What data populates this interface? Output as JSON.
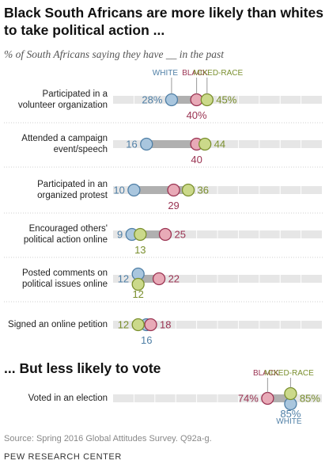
{
  "title": "Black South Africans are more likely than whites to take political action ...",
  "subtitle": "% of South Africans saying they have __ in the past",
  "section2_title": "... But less likely to vote",
  "source": "Source: Spring 2016 Global Attitudes Survey. Q92a-g.",
  "org": "PEW RESEARCH CENTER",
  "colors": {
    "white": "#4f7fa6",
    "white_fill": "#a9c6de",
    "black": "#9a3352",
    "black_fill": "#e8aab7",
    "mixed": "#7a8f2e",
    "mixed_fill": "#cbd98a",
    "track": "#e6e6e6",
    "range": "#b0b0b0"
  },
  "chart_data": {
    "type": "dot",
    "series": [
      {
        "name": "WHITE",
        "key": "white"
      },
      {
        "name": "BLACK",
        "key": "black"
      },
      {
        "name": "MIXED-RACE",
        "key": "mixed"
      }
    ],
    "xlim": [
      0,
      100
    ],
    "groups": [
      {
        "rows": [
          {
            "lines": [
              "Participated in a",
              "volunteer organization"
            ],
            "white": 28,
            "black": 40,
            "mixed": 45,
            "labels": {
              "white": "28%",
              "black": "40%",
              "mixed": "45%"
            }
          },
          {
            "lines": [
              "Attended a campaign",
              "event/speech"
            ],
            "white": 16,
            "black": 40,
            "mixed": 44,
            "labels": {
              "white": "16",
              "black": "40",
              "mixed": "44"
            }
          },
          {
            "lines": [
              "Participated in an",
              "organized protest"
            ],
            "white": 10,
            "black": 29,
            "mixed": 36,
            "labels": {
              "white": "10",
              "black": "29",
              "mixed": "36"
            }
          },
          {
            "lines": [
              "Encouraged others'",
              "political action online"
            ],
            "white": 9,
            "black": 25,
            "mixed": 13,
            "labels": {
              "white": "9",
              "black": "25",
              "mixed": "13"
            }
          },
          {
            "lines": [
              "Posted comments on",
              "political issues online"
            ],
            "white": 12,
            "black": 22,
            "mixed": 12,
            "labels": {
              "white": "12",
              "black": "22",
              "mixed": "12"
            }
          },
          {
            "lines": [
              "Signed an online petition"
            ],
            "white": 16,
            "black": 18,
            "mixed": 12,
            "labels": {
              "white": "16",
              "black": "18",
              "mixed": "12"
            }
          }
        ]
      },
      {
        "rows": [
          {
            "lines": [
              "Voted in an election"
            ],
            "white": 85,
            "black": 74,
            "mixed": 85,
            "labels": {
              "white": "85%",
              "black": "74%",
              "mixed": "85%"
            }
          }
        ]
      }
    ]
  }
}
